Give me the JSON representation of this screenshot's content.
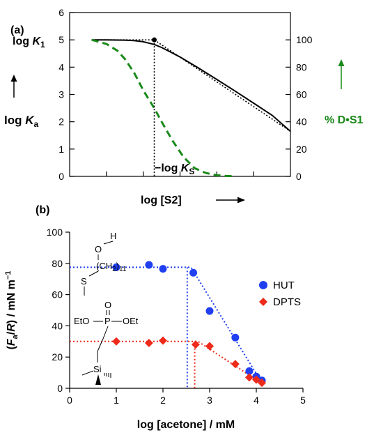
{
  "chart_data": [
    {
      "panel_label": "(a)",
      "type": "line",
      "xlabel": "log [S2]",
      "ylabel_left_prefix": "log ",
      "ylabel_left_var": "K",
      "ylabel_left_sub": "a",
      "ylabel_right": "% D•S1",
      "ylim_left": [
        0,
        6
      ],
      "yticks_left": [
        "0",
        "1",
        "2",
        "3",
        "4",
        "5",
        "6"
      ],
      "ylim_right": [
        0,
        120
      ],
      "yticks_right": [
        "0",
        "20",
        "40",
        "60",
        "80",
        "100"
      ],
      "x_range": [
        0,
        12
      ],
      "annotations": {
        "logK1_prefix": "log ",
        "logK1_var": "K",
        "logK1_sub": "1",
        "logKs_prefix": "−log ",
        "logKs_var": "K",
        "logKs_sub": "S"
      },
      "breakpoint_x": 4.6,
      "series": [
        {
          "axis": "left",
          "style": "solid",
          "color": "#000000",
          "x": [
            1.2,
            2,
            3,
            3.5,
            4,
            4.6,
            5,
            5.5,
            6,
            7,
            8,
            9,
            10,
            11,
            12
          ],
          "y": [
            5.0,
            5.0,
            4.99,
            4.97,
            4.93,
            4.83,
            4.72,
            4.55,
            4.37,
            3.97,
            3.55,
            3.12,
            2.68,
            2.24,
            1.65
          ]
        },
        {
          "axis": "left",
          "style": "dotted",
          "color": "#000000",
          "x": [
            1.2,
            4.6,
            12
          ],
          "y": [
            5.0,
            5.0,
            1.65
          ]
        },
        {
          "axis": "right",
          "style": "dashed",
          "color": "#1a8a1a",
          "x": [
            1.2,
            2,
            2.6,
            3,
            3.5,
            4,
            4.6,
            5,
            5.6,
            6.2,
            6.8,
            7.4,
            8,
            8.5,
            9
          ],
          "y": [
            100,
            97,
            92,
            86,
            76,
            63,
            50,
            40,
            26,
            14,
            6,
            2.5,
            0.8,
            0.3,
            0.1
          ]
        }
      ]
    },
    {
      "panel_label": "(b)",
      "type": "scatter",
      "xlabel": "log [acetone] / mM",
      "ylabel": "(Fa/R) / mN m⁻¹",
      "ylabel_open": "(",
      "ylabel_var": "F",
      "ylabel_sub": "a",
      "ylabel_mid": "/",
      "ylabel_var2": "R",
      "ylabel_close": ") / mN m",
      "ylabel_sup": "−1",
      "xlim": [
        0,
        5
      ],
      "xticks": [
        "0",
        "1",
        "2",
        "3",
        "4",
        "5"
      ],
      "ylim": [
        0,
        100
      ],
      "yticks": [
        "0",
        "20",
        "40",
        "60",
        "80",
        "100"
      ],
      "legend_position": "right",
      "series": [
        {
          "name": "HUT",
          "color": "#1f3ff0",
          "marker": "circle",
          "x": [
            1.0,
            1.7,
            2.0,
            2.65,
            3.0,
            3.55,
            3.85,
            4.0,
            4.12
          ],
          "y": [
            77.5,
            79.0,
            76.5,
            74.0,
            49.5,
            32.5,
            11.0,
            7.5,
            5.0
          ],
          "fit_x": [
            0,
            2.6,
            4.15
          ],
          "fit_y": [
            77.5,
            77.5,
            2.0
          ],
          "break_x": 2.52
        },
        {
          "name": "DPTS",
          "color": "#ee2a1a",
          "marker": "diamond",
          "x": [
            1.0,
            1.7,
            2.0,
            2.7,
            3.0,
            3.55,
            3.85,
            4.0,
            4.12
          ],
          "y": [
            30.0,
            29.0,
            30.5,
            28.0,
            27.0,
            15.5,
            7.0,
            5.5,
            3.5
          ],
          "fit_x": [
            0,
            2.75,
            4.15
          ],
          "fit_y": [
            30.0,
            30.0,
            2.5
          ],
          "break_x": 2.68
        }
      ],
      "structure_labels": {
        "hut_h": "H",
        "hut_o": "O",
        "hut_chain": "(CH",
        "hut_chain_sub": "2",
        "hut_chain_close": ")",
        "hut_chain_count": "11",
        "hut_s": "S",
        "dpts_o": "O",
        "dpts_left": "EtO",
        "dpts_p": "P",
        "dpts_right": "OEt",
        "dpts_si": "Si"
      }
    }
  ]
}
